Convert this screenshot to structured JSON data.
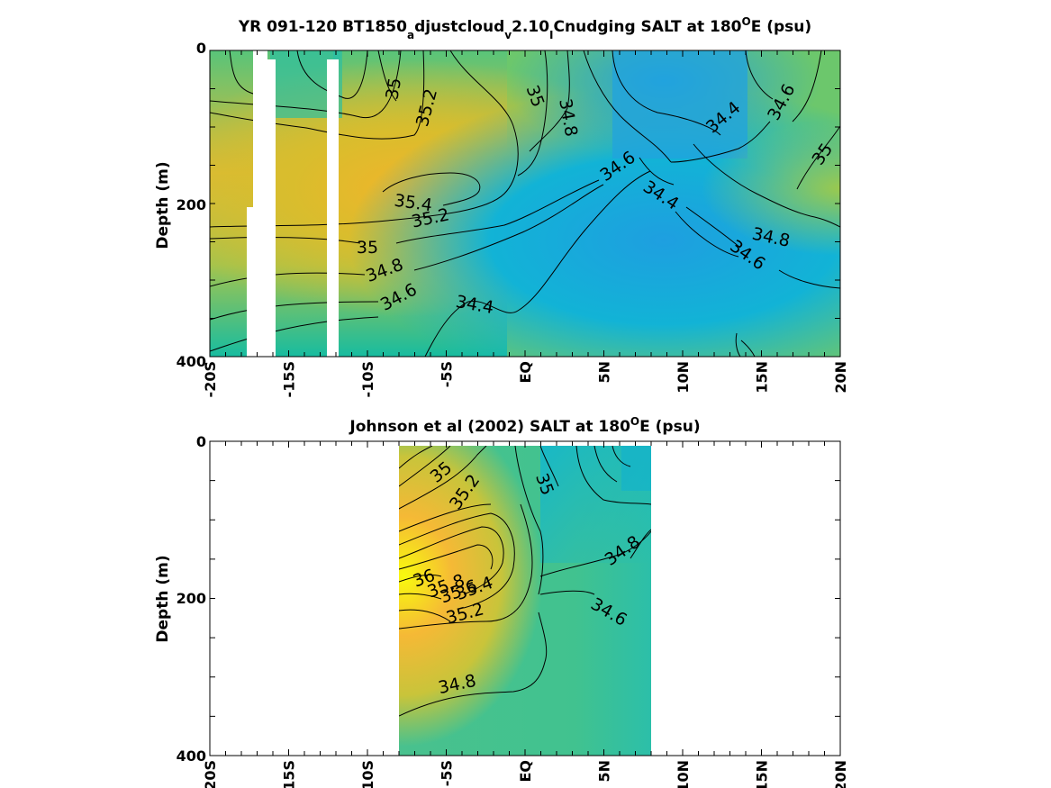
{
  "chart_data": [
    {
      "type": "heatmap",
      "title_main": "YR 091-120 BT1850",
      "title_sub1": "a",
      "title_mid1": "djustcloud",
      "title_sub2": "v",
      "title_mid2": "2.10",
      "title_sub3": "I",
      "title_tail": "Cnudging SALT at 180",
      "title_deg": "O",
      "title_end": "E (psu)",
      "ylabel": "Depth (m)",
      "xlabel": "",
      "xlim": [
        -20,
        20
      ],
      "ylim": [
        400,
        0
      ],
      "x_ticks": [
        -20,
        -15,
        -10,
        -5,
        0,
        5,
        10,
        15,
        20
      ],
      "x_tick_labels": [
        "-20S",
        "-15S",
        "-10S",
        "-5S",
        "EQ",
        "5N",
        "10N",
        "15N",
        "20N"
      ],
      "y_ticks": [
        0,
        200,
        400
      ],
      "y_tick_labels": [
        "0",
        "200",
        "400"
      ],
      "colorbar": "parula",
      "contour_labels": [
        {
          "text": "35",
          "x": -8.3,
          "y": 50,
          "angle": -80
        },
        {
          "text": "35.2",
          "x": -6.2,
          "y": 75,
          "angle": -75
        },
        {
          "text": "35",
          "x": 0.6,
          "y": 60,
          "angle": 70
        },
        {
          "text": "34.8",
          "x": 2.7,
          "y": 88,
          "angle": 80
        },
        {
          "text": "34.4",
          "x": 12.6,
          "y": 88,
          "angle": -40
        },
        {
          "text": "34.6",
          "x": 16.3,
          "y": 68,
          "angle": -62
        },
        {
          "text": "35",
          "x": 18.9,
          "y": 136,
          "angle": -55
        },
        {
          "text": "34.6",
          "x": 5.9,
          "y": 152,
          "angle": -35
        },
        {
          "text": "34.4",
          "x": 8.6,
          "y": 190,
          "angle": 33
        },
        {
          "text": "35.4",
          "x": -7.1,
          "y": 200,
          "angle": 8
        },
        {
          "text": "35.2",
          "x": -6.0,
          "y": 220,
          "angle": -12
        },
        {
          "text": "35",
          "x": -10.0,
          "y": 258,
          "angle": 0
        },
        {
          "text": "34.8",
          "x": -8.9,
          "y": 288,
          "angle": -20
        },
        {
          "text": "34.6",
          "x": -8.0,
          "y": 323,
          "angle": -28
        },
        {
          "text": "34.4",
          "x": -3.2,
          "y": 333,
          "angle": 10
        },
        {
          "text": "34.8",
          "x": 15.6,
          "y": 245,
          "angle": 12
        },
        {
          "text": "34.6",
          "x": 14.1,
          "y": 268,
          "angle": 35
        }
      ]
    },
    {
      "type": "heatmap",
      "title_main": "Johnson et al (2002) SALT at 180",
      "title_deg": "O",
      "title_end": "E (psu)",
      "ylabel": "Depth (m)",
      "xlabel": "",
      "xlim": [
        -20,
        20
      ],
      "ylim": [
        400,
        0
      ],
      "data_xrange": [
        -8,
        8
      ],
      "x_ticks": [
        -20,
        -15,
        -10,
        -5,
        0,
        5,
        10,
        15,
        20
      ],
      "x_tick_labels": [
        "20S",
        "15S",
        "10S",
        "-5S",
        "EQ",
        "5N",
        "10N",
        "15N",
        "20N"
      ],
      "y_ticks": [
        0,
        200,
        400
      ],
      "y_tick_labels": [
        "0",
        "200",
        "400"
      ],
      "colorbar": "parula",
      "contour_labels": [
        {
          "text": "35",
          "x": -5.3,
          "y": 40,
          "angle": -40
        },
        {
          "text": "35.2",
          "x": -3.8,
          "y": 65,
          "angle": -55
        },
        {
          "text": "35",
          "x": 1.2,
          "y": 55,
          "angle": 70
        },
        {
          "text": "34.8",
          "x": 6.2,
          "y": 140,
          "angle": -35
        },
        {
          "text": "36",
          "x": -6.4,
          "y": 175,
          "angle": -20
        },
        {
          "text": "35.8",
          "x": -5.0,
          "y": 185,
          "angle": -20
        },
        {
          "text": "35.6",
          "x": -4.2,
          "y": 192,
          "angle": -20
        },
        {
          "text": "35.4",
          "x": -3.2,
          "y": 188,
          "angle": -20
        },
        {
          "text": "35.2",
          "x": -3.8,
          "y": 220,
          "angle": -15
        },
        {
          "text": "34.6",
          "x": 5.3,
          "y": 218,
          "angle": 30
        },
        {
          "text": "34.8",
          "x": -4.3,
          "y": 310,
          "angle": -12
        }
      ]
    }
  ]
}
